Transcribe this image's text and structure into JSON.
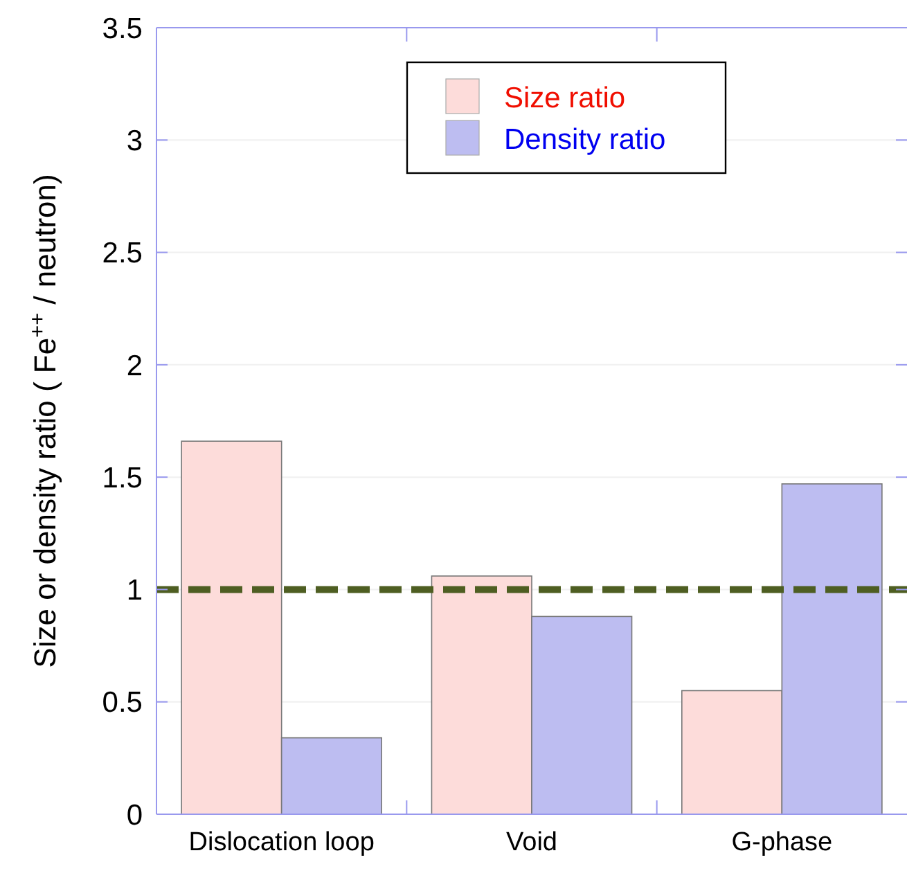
{
  "chart_data": {
    "type": "bar",
    "ylabel": "Size or density ratio ( Fe$^{++}$ / neutron)",
    "categories": [
      "Dislocation loop",
      "Void",
      "G-phase"
    ],
    "series": [
      {
        "name": "Size ratio",
        "color": "#fddcda",
        "values": [
          1.66,
          1.06,
          0.55
        ]
      },
      {
        "name": "Density ratio",
        "color": "#bdbdf1",
        "values": [
          0.34,
          0.88,
          1.47
        ]
      }
    ],
    "ylim": [
      0,
      3.5
    ],
    "yticks": [
      0,
      0.5,
      1,
      1.5,
      2,
      2.5,
      3,
      3.5
    ],
    "ref_lines": [
      {
        "axis": "y",
        "value": 1,
        "color": "#4e5e22",
        "line_style": "dashed"
      }
    ],
    "legend": "top",
    "grid": "y"
  }
}
